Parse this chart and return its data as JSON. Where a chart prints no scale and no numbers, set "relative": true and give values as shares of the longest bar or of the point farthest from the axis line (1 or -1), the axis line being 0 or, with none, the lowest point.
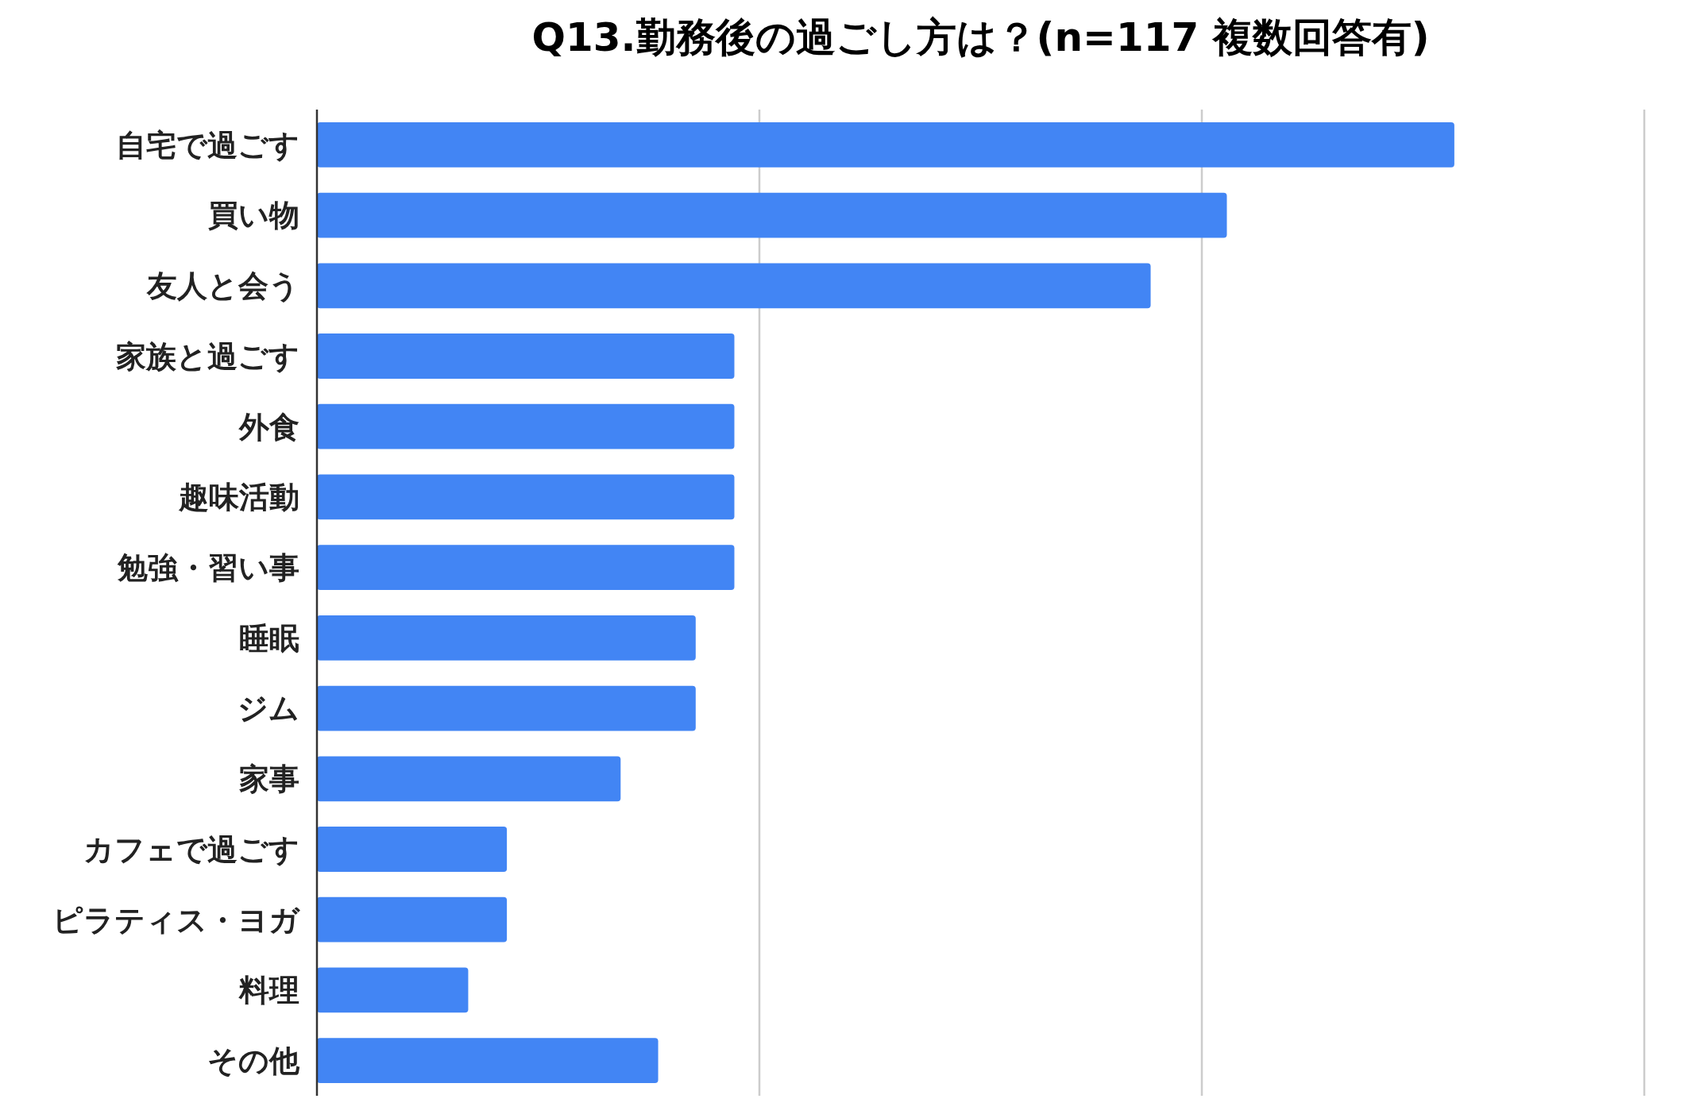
{
  "chart_data": {
    "type": "bar",
    "orientation": "horizontal",
    "relative": true,
    "title": "Q13.勤務後の過ごし方は？(n=117 複数回答有)",
    "categories": [
      "自宅で過ごす",
      "買い物",
      "友人と会う",
      "家族と過ごす",
      "外食",
      "趣味活動",
      "勉強・習い事",
      "睡眠",
      "ジム",
      "家事",
      "カフェで過ごす",
      "ピラティス・ヨガ",
      "料理",
      "その他"
    ],
    "values": [
      1,
      0.8,
      0.733,
      0.367,
      0.367,
      0.367,
      0.367,
      0.333,
      0.333,
      0.267,
      0.167,
      0.167,
      0.133,
      0.3
    ],
    "color": "#4285f4",
    "ref_lines": [
      {
        "axis": "x",
        "value": 0.389,
        "color": "#cccccc"
      },
      {
        "axis": "x",
        "value": 0.778,
        "color": "#cccccc"
      },
      {
        "axis": "x",
        "value": 1.167,
        "color": "#cccccc"
      }
    ]
  }
}
